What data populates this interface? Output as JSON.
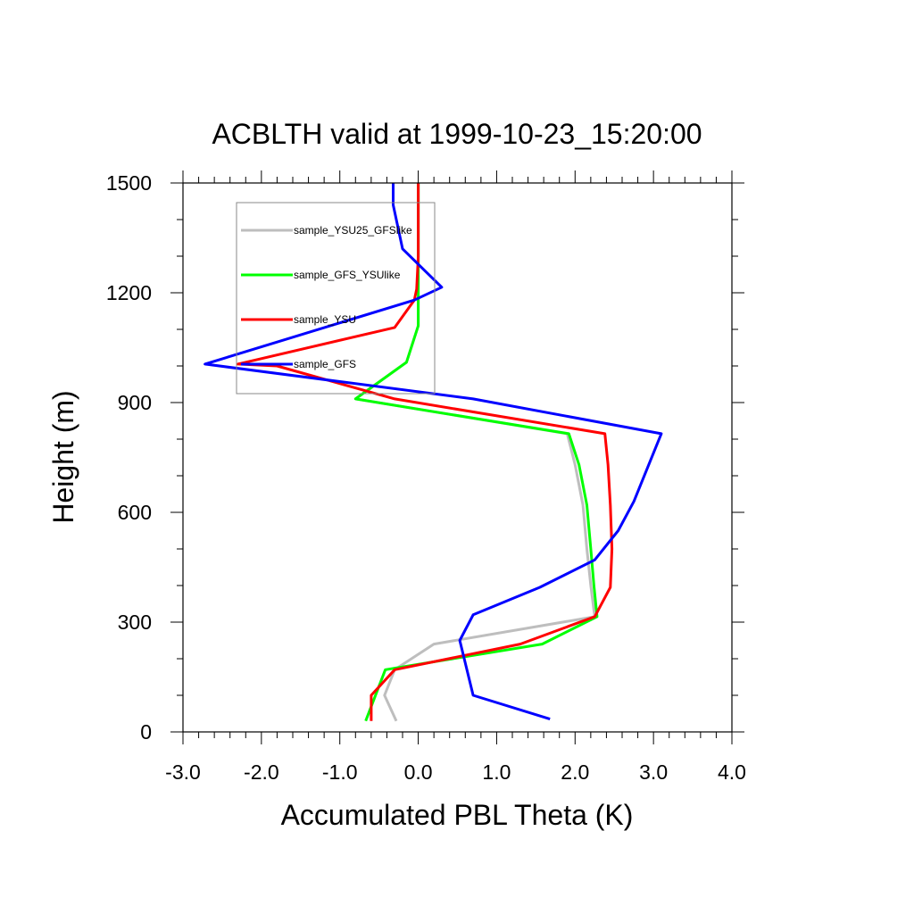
{
  "chart_data": {
    "type": "line",
    "title": "ACBLTH valid at 1999-10-23_15:20:00",
    "xlabel": "Accumulated PBL Theta (K)",
    "ylabel": "Height (m)",
    "xlim": [
      -3.0,
      4.0
    ],
    "ylim": [
      0,
      1500
    ],
    "xticks": [
      -3.0,
      -2.0,
      -1.0,
      0.0,
      1.0,
      2.0,
      3.0,
      4.0
    ],
    "xtick_labels": [
      "-3.0",
      "-2.0",
      "-1.0",
      "0.0",
      "1.0",
      "2.0",
      "3.0",
      "4.0"
    ],
    "yticks": [
      0,
      300,
      600,
      900,
      1200,
      1500
    ],
    "ytick_labels": [
      "0",
      "300",
      "600",
      "900",
      "1200",
      "1500"
    ],
    "grid": false,
    "legend_position": "top-left",
    "series": [
      {
        "name": "sample_YSU25_GFSlike",
        "color": "#bebebe",
        "points": [
          [
            -0.28,
            30
          ],
          [
            -0.43,
            100
          ],
          [
            -0.3,
            170
          ],
          [
            0.2,
            240
          ],
          [
            2.25,
            315
          ],
          [
            2.2,
            400
          ],
          [
            2.15,
            500
          ],
          [
            2.1,
            620
          ],
          [
            2.0,
            730
          ],
          [
            1.9,
            815
          ],
          [
            -0.8,
            910
          ],
          [
            -0.15,
            1010
          ],
          [
            0.0,
            1110
          ],
          [
            0.0,
            1210
          ],
          [
            0.0,
            1300
          ],
          [
            0.0,
            1400
          ],
          [
            0.0,
            1500
          ]
        ]
      },
      {
        "name": "sample_GFS_YSUlike",
        "color": "#00ff00",
        "points": [
          [
            -0.67,
            30
          ],
          [
            -0.42,
            170
          ],
          [
            1.58,
            240
          ],
          [
            2.28,
            315
          ],
          [
            2.24,
            400
          ],
          [
            2.2,
            500
          ],
          [
            2.15,
            620
          ],
          [
            2.05,
            730
          ],
          [
            1.92,
            815
          ],
          [
            -0.8,
            910
          ],
          [
            -0.15,
            1010
          ],
          [
            0.0,
            1110
          ],
          [
            0.0,
            1210
          ],
          [
            0.0,
            1300
          ],
          [
            0.0,
            1400
          ],
          [
            0.0,
            1500
          ]
        ]
      },
      {
        "name": "sample_YSU",
        "color": "#ff0000",
        "points": [
          [
            -0.6,
            30
          ],
          [
            -0.6,
            100
          ],
          [
            -0.3,
            170
          ],
          [
            1.3,
            240
          ],
          [
            2.25,
            315
          ],
          [
            2.45,
            395
          ],
          [
            2.47,
            500
          ],
          [
            2.45,
            620
          ],
          [
            2.42,
            730
          ],
          [
            2.38,
            815
          ],
          [
            -0.3,
            910
          ],
          [
            -1.8,
            1000
          ],
          [
            -2.3,
            1005
          ],
          [
            -0.3,
            1105
          ],
          [
            -0.05,
            1180
          ],
          [
            -0.02,
            1210
          ],
          [
            0.0,
            1300
          ],
          [
            0.0,
            1400
          ],
          [
            0.0,
            1500
          ]
        ]
      },
      {
        "name": "sample_GFS",
        "color": "#0000ff",
        "points": [
          [
            1.68,
            35
          ],
          [
            0.7,
            100
          ],
          [
            0.53,
            250
          ],
          [
            0.7,
            320
          ],
          [
            1.55,
            395
          ],
          [
            2.25,
            470
          ],
          [
            2.55,
            550
          ],
          [
            2.75,
            630
          ],
          [
            3.1,
            815
          ],
          [
            0.7,
            910
          ],
          [
            -2.72,
            1005
          ],
          [
            -0.05,
            1180
          ],
          [
            0.3,
            1215
          ],
          [
            -0.2,
            1320
          ],
          [
            -0.32,
            1440
          ],
          [
            -0.32,
            1500
          ]
        ]
      }
    ]
  }
}
